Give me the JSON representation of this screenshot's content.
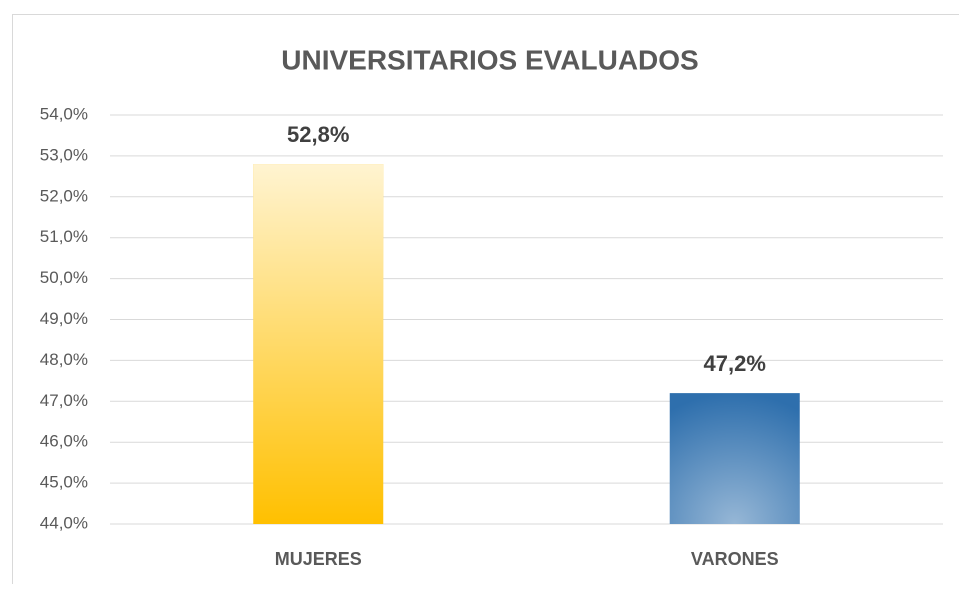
{
  "chart_data": {
    "type": "bar",
    "title": "UNIVERSITARIOS EVALUADOS",
    "categories": [
      "MUJERES",
      "VARONES"
    ],
    "values": [
      52.8,
      47.2
    ],
    "value_labels": [
      "52,8%",
      "47,2%"
    ],
    "colors": [
      "#ffc000",
      "#2e6fad"
    ],
    "ylim": [
      44,
      54
    ],
    "yticks": [
      {
        "value": 44,
        "label": "44,0%"
      },
      {
        "value": 45,
        "label": "45,0%"
      },
      {
        "value": 46,
        "label": "46,0%"
      },
      {
        "value": 47,
        "label": "47,0%"
      },
      {
        "value": 48,
        "label": "48,0%"
      },
      {
        "value": 49,
        "label": "49,0%"
      },
      {
        "value": 50,
        "label": "50,0%"
      },
      {
        "value": 51,
        "label": "51,0%"
      },
      {
        "value": 52,
        "label": "52,0%"
      },
      {
        "value": 53,
        "label": "53,0%"
      },
      {
        "value": 54,
        "label": "54,0%"
      }
    ],
    "grid": true
  }
}
